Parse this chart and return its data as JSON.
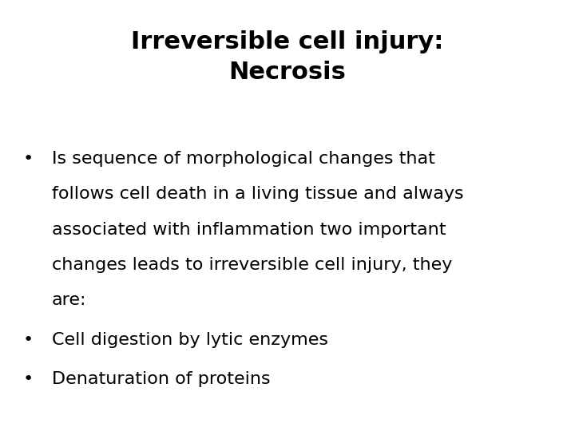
{
  "title_line1": "Irreversible cell injury:",
  "title_line2": "Necrosis",
  "title_fontsize": 22,
  "title_fontweight": "bold",
  "title_color": "#000000",
  "background_color": "#ffffff",
  "bullet_fontsize": 16,
  "bullet_color": "#000000",
  "bullet_symbol": "•",
  "font_family": "DejaVu Sans",
  "bullet1_lines": [
    "Is sequence of morphological changes that",
    "follows cell death in a living tissue and always",
    "associated with inflammation two important",
    "changes leads to irreversible cell injury, they",
    "are:"
  ],
  "bullet2": "Cell digestion by lytic enzymes",
  "bullet3": "Denaturation of proteins"
}
